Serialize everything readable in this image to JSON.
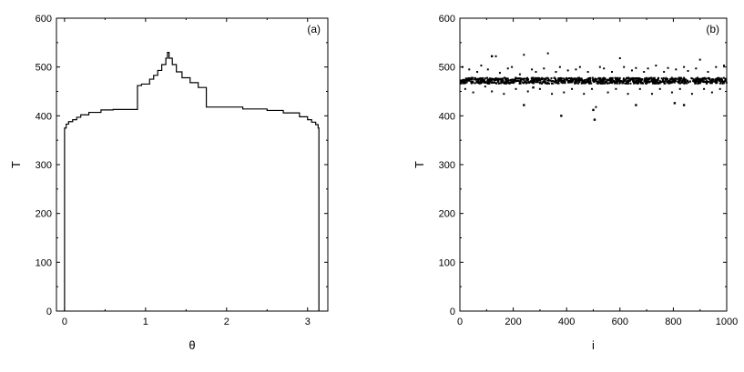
{
  "chart_data": [
    {
      "type": "line",
      "panel_label": "(a)",
      "xlabel": "θ",
      "ylabel": "T",
      "xlim": [
        -0.1,
        3.25
      ],
      "ylim": [
        0,
        600
      ],
      "xticks": [
        0,
        1,
        2,
        3
      ],
      "yticks": [
        0,
        100,
        200,
        300,
        400,
        500,
        600
      ],
      "grid": false,
      "series": [
        {
          "step": true,
          "x": [
            0.0,
            0.0,
            0.02,
            0.05,
            0.1,
            0.15,
            0.2,
            0.3,
            0.45,
            0.6,
            0.9,
            0.9,
            0.95,
            1.05,
            1.1,
            1.15,
            1.2,
            1.25,
            1.27,
            1.29,
            1.33,
            1.38,
            1.45,
            1.55,
            1.65,
            1.75,
            1.8,
            2.2,
            2.5,
            2.7,
            2.9,
            3.0,
            3.05,
            3.1,
            3.13,
            3.14,
            3.14
          ],
          "y": [
            0,
            375,
            383,
            388,
            392,
            397,
            402,
            407,
            412,
            413,
            418,
            462,
            465,
            475,
            483,
            493,
            505,
            518,
            530,
            518,
            505,
            490,
            478,
            468,
            458,
            418,
            418,
            414,
            411,
            406,
            398,
            392,
            387,
            382,
            375,
            100,
            0
          ]
        }
      ]
    },
    {
      "type": "scatter",
      "panel_label": "(b)",
      "xlabel": "i",
      "ylabel": "T",
      "xlim": [
        0,
        1000
      ],
      "ylim": [
        0,
        600
      ],
      "xticks": [
        0,
        200,
        400,
        600,
        800,
        1000
      ],
      "yticks": [
        0,
        100,
        200,
        300,
        400,
        500,
        600
      ],
      "grid": false,
      "series": [
        {
          "band": {
            "x_range": [
              0,
              1000
            ],
            "y_center": 472,
            "y_spread": 6,
            "count": 1000
          },
          "scattered_points": {
            "x": [
              10,
              20,
              35,
              50,
              65,
              80,
              95,
              105,
              120,
              135,
              150,
              165,
              180,
              195,
              210,
              225,
              240,
              255,
              270,
              285,
              300,
              315,
              330,
              345,
              360,
              375,
              390,
              405,
              420,
              435,
              450,
              465,
              480,
              495,
              510,
              525,
              540,
              555,
              570,
              585,
              600,
              615,
              630,
              645,
              660,
              675,
              690,
              705,
              720,
              735,
              750,
              765,
              780,
              795,
              810,
              825,
              840,
              855,
              870,
              885,
              900,
              915,
              930,
              945,
              960,
              975,
              990
            ],
            "y": [
              500,
              455,
              495,
              448,
              490,
              503,
              460,
              495,
              450,
              522,
              488,
              445,
              497,
              500,
              455,
              485,
              525,
              450,
              495,
              490,
              455,
              497,
              528,
              445,
              490,
              500,
              448,
              493,
              455,
              495,
              500,
              445,
              490,
              455,
              418,
              500,
              497,
              448,
              490,
              455,
              518,
              500,
              445,
              493,
              498,
              455,
              490,
              497,
              445,
              503,
              455,
              490,
              498,
              448,
              495,
              455,
              500,
              492,
              445,
              497,
              515,
              455,
              490,
              448,
              500,
              455,
              503
            ]
          },
          "outliers": {
            "x": [
              120,
              240,
              275,
              380,
              500,
              505,
              660,
              805,
              840
            ],
            "y": [
              522,
              422,
              458,
              400,
              412,
              392,
              422,
              426,
              422
            ]
          }
        }
      ]
    }
  ]
}
